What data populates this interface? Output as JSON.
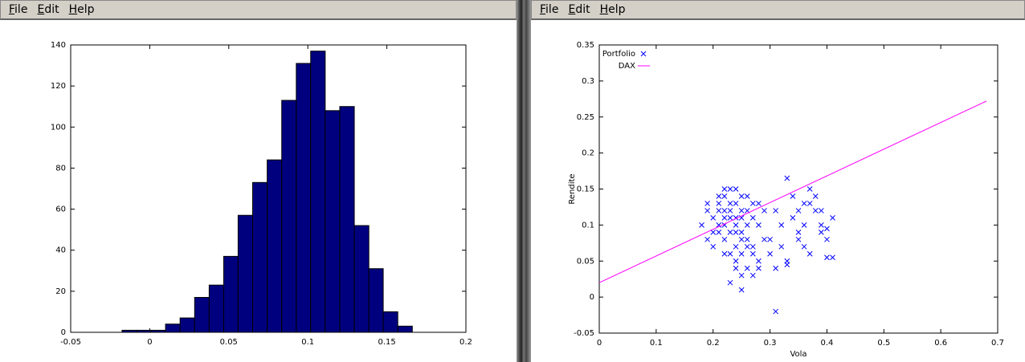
{
  "menus": [
    [
      "File",
      "Edit",
      "Help"
    ],
    [
      "File",
      "Edit",
      "Help"
    ]
  ],
  "chart_data": [
    {
      "type": "histogram",
      "bins": [
        -0.0175,
        -0.0083,
        0.0009,
        0.01,
        0.0192,
        0.0284,
        0.0376,
        0.0468,
        0.0559,
        0.0651,
        0.0743,
        0.0835,
        0.0927,
        0.1018,
        0.111,
        0.1202,
        0.1294,
        0.1386,
        0.1477,
        0.1569,
        0.1661
      ],
      "values": [
        1,
        1,
        1,
        4,
        7,
        17,
        23,
        37,
        57,
        73,
        84,
        113,
        131,
        137,
        108,
        110,
        52,
        31,
        10,
        3
      ],
      "color": "#00007f",
      "xlim": [
        -0.05,
        0.2
      ],
      "xticks": [
        -0.05,
        0,
        0.05,
        0.1,
        0.15,
        0.2
      ],
      "ylim": [
        0,
        140
      ],
      "yticks": [
        0,
        20,
        40,
        60,
        80,
        100,
        120,
        140
      ],
      "grid": false
    },
    {
      "type": "scatter",
      "xlabel": "Vola",
      "ylabel": "Rendite",
      "xlim": [
        0,
        0.7
      ],
      "xticks": [
        0,
        0.1,
        0.2,
        0.3,
        0.4,
        0.5,
        0.6,
        0.7
      ],
      "ylim": [
        -0.05,
        0.35
      ],
      "yticks": [
        -0.05,
        0,
        0.05,
        0.1,
        0.15,
        0.2,
        0.25,
        0.3,
        0.35
      ],
      "grid": false,
      "legend": "upper left",
      "series": [
        {
          "name": "Portfolio",
          "color": "#0000ff",
          "marker": "x",
          "x": [
            0.21,
            0.22,
            0.23,
            0.24,
            0.25,
            0.26,
            0.27,
            0.22,
            0.23,
            0.24,
            0.25,
            0.26,
            0.2,
            0.21,
            0.28,
            0.29,
            0.19,
            0.18,
            0.22,
            0.24,
            0.25,
            0.23,
            0.26,
            0.27,
            0.21,
            0.2,
            0.24,
            0.25,
            0.22,
            0.23,
            0.28,
            0.26,
            0.24,
            0.25,
            0.23,
            0.22,
            0.27,
            0.21,
            0.19,
            0.3,
            0.24,
            0.26,
            0.23,
            0.25,
            0.22,
            0.28,
            0.27,
            0.2,
            0.29,
            0.24,
            0.25,
            0.26,
            0.23,
            0.21,
            0.22,
            0.24,
            0.27,
            0.25,
            0.28,
            0.19,
            0.31,
            0.32,
            0.33,
            0.34,
            0.35,
            0.36,
            0.37,
            0.38,
            0.39,
            0.4,
            0.41,
            0.36,
            0.37,
            0.33,
            0.35,
            0.38,
            0.39,
            0.4,
            0.34,
            0.32,
            0.3,
            0.31,
            0.36,
            0.37,
            0.33,
            0.35,
            0.41,
            0.4,
            0.31,
            0.39
          ],
          "values": [
            0.1,
            0.12,
            0.09,
            0.11,
            0.08,
            0.1,
            0.13,
            0.14,
            0.06,
            0.05,
            0.12,
            0.07,
            0.11,
            0.09,
            0.1,
            0.12,
            0.08,
            0.1,
            0.15,
            0.13,
            0.03,
            0.02,
            0.04,
            0.06,
            0.13,
            0.07,
            0.15,
            0.14,
            0.08,
            0.11,
            0.05,
            0.12,
            0.07,
            0.09,
            0.13,
            0.06,
            0.11,
            0.14,
            0.12,
            0.06,
            0.1,
            0.08,
            0.12,
            0.11,
            0.1,
            0.13,
            0.03,
            0.09,
            0.08,
            0.04,
            0.01,
            0.14,
            0.15,
            0.12,
            0.11,
            0.09,
            0.07,
            0.06,
            0.04,
            0.13,
            0.12,
            0.1,
            0.165,
            0.14,
            0.09,
            0.13,
            0.15,
            0.12,
            0.1,
            0.08,
            0.11,
            0.07,
            0.06,
            0.05,
            0.12,
            0.14,
            0.09,
            0.055,
            0.11,
            0.07,
            0.08,
            -0.02,
            0.1,
            0.13,
            0.045,
            0.08,
            0.055,
            0.095,
            0.04,
            0.12
          ]
        },
        {
          "name": "DAX",
          "color": "#ff00ff",
          "marker": "line",
          "x": [
            0,
            0.68
          ],
          "values": [
            0.02,
            0.272
          ]
        }
      ]
    }
  ]
}
